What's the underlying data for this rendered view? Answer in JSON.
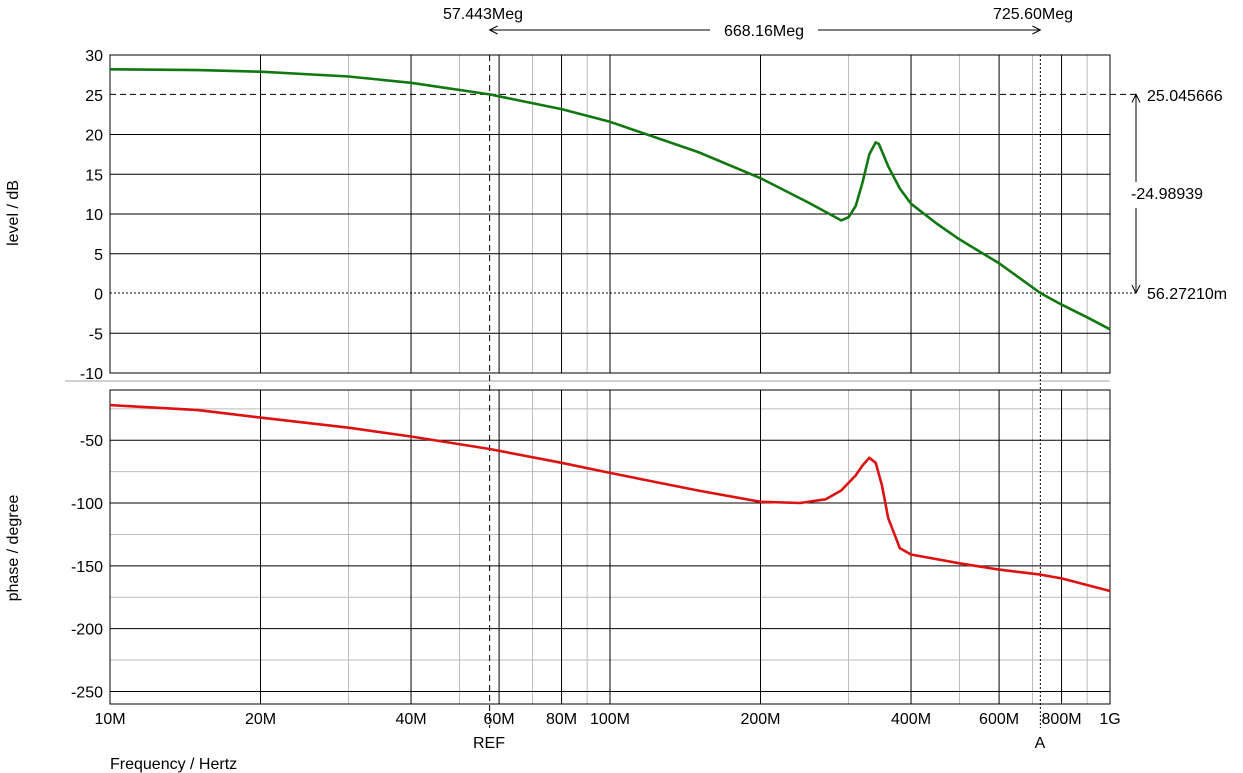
{
  "chart_data": [
    {
      "type": "line",
      "ylabel": "level / dB",
      "ylim": [
        -10,
        30
      ],
      "yticks": [
        30,
        25,
        20,
        15,
        10,
        5,
        0,
        -5,
        -10
      ],
      "xscale": "log",
      "xlim": [
        10000000,
        1000000000
      ],
      "grid": true,
      "series": [
        {
          "color": "#117711",
          "x": [
            10000000,
            15000000,
            20000000,
            30000000,
            40000000,
            57443000,
            80000000,
            100000000,
            150000000,
            200000000,
            250000000,
            290000000,
            300000000,
            310000000,
            320000000,
            330000000,
            340000000,
            345000000,
            360000000,
            380000000,
            400000000,
            450000000,
            500000000,
            600000000,
            725600000,
            800000000,
            900000000,
            1000000000
          ],
          "values": [
            28.2,
            28.1,
            27.9,
            27.3,
            26.5,
            25.05,
            23.2,
            21.6,
            17.8,
            14.5,
            11.4,
            9.2,
            9.6,
            11.0,
            14.0,
            17.5,
            19.0,
            18.8,
            16.0,
            13.2,
            11.3,
            8.8,
            6.8,
            3.8,
            0.06,
            -1.4,
            -3.0,
            -4.5
          ]
        }
      ]
    },
    {
      "type": "line",
      "ylabel": "phase / degree",
      "xlabel": "Frequency / Hertz",
      "ylim": [
        -260,
        -10
      ],
      "yticks": [
        -50,
        -100,
        -150,
        -200,
        -250
      ],
      "xscale": "log",
      "xlim": [
        10000000,
        1000000000
      ],
      "xticks": [
        {
          "v": 10000000,
          "label": "10M"
        },
        {
          "v": 20000000,
          "label": "20M"
        },
        {
          "v": 40000000,
          "label": "40M"
        },
        {
          "v": 60000000,
          "label": "60M"
        },
        {
          "v": 80000000,
          "label": "80M"
        },
        {
          "v": 100000000,
          "label": "100M"
        },
        {
          "v": 200000000,
          "label": "200M"
        },
        {
          "v": 400000000,
          "label": "400M"
        },
        {
          "v": 600000000,
          "label": "600M"
        },
        {
          "v": 800000000,
          "label": "800M"
        },
        {
          "v": 1000000000,
          "label": "1G"
        }
      ],
      "grid": true,
      "series": [
        {
          "color": "#dd1111",
          "x": [
            10000000,
            15000000,
            20000000,
            30000000,
            40000000,
            57443000,
            80000000,
            100000000,
            150000000,
            200000000,
            240000000,
            270000000,
            290000000,
            310000000,
            320000000,
            330000000,
            340000000,
            350000000,
            360000000,
            380000000,
            400000000,
            500000000,
            600000000,
            725600000,
            800000000,
            1000000000
          ],
          "values": [
            -22,
            -26,
            -32,
            -40,
            -47,
            -57,
            -68,
            -76,
            -90,
            -99,
            -100,
            -97,
            -90,
            -78,
            -70,
            -64,
            -68,
            -86,
            -112,
            -136,
            -141,
            -148,
            -153,
            -157,
            -160,
            -170
          ]
        }
      ]
    }
  ],
  "cursors": {
    "ref": {
      "freq": 57443000,
      "label": "REF",
      "readout": "57.443Meg"
    },
    "a": {
      "freq": 725600000,
      "label": "A",
      "readout": "725.60Meg"
    },
    "delta_freq": "668.16Meg",
    "ref_level": 25.045666,
    "a_level": 0.0562721,
    "level_top": "25.045666",
    "level_delta": "-24.98939",
    "level_bottom": "56.27210m"
  },
  "colors": {
    "grid_major": "#000000",
    "grid_minor": "#bbbbbb",
    "separator": "#d0d0d0"
  }
}
